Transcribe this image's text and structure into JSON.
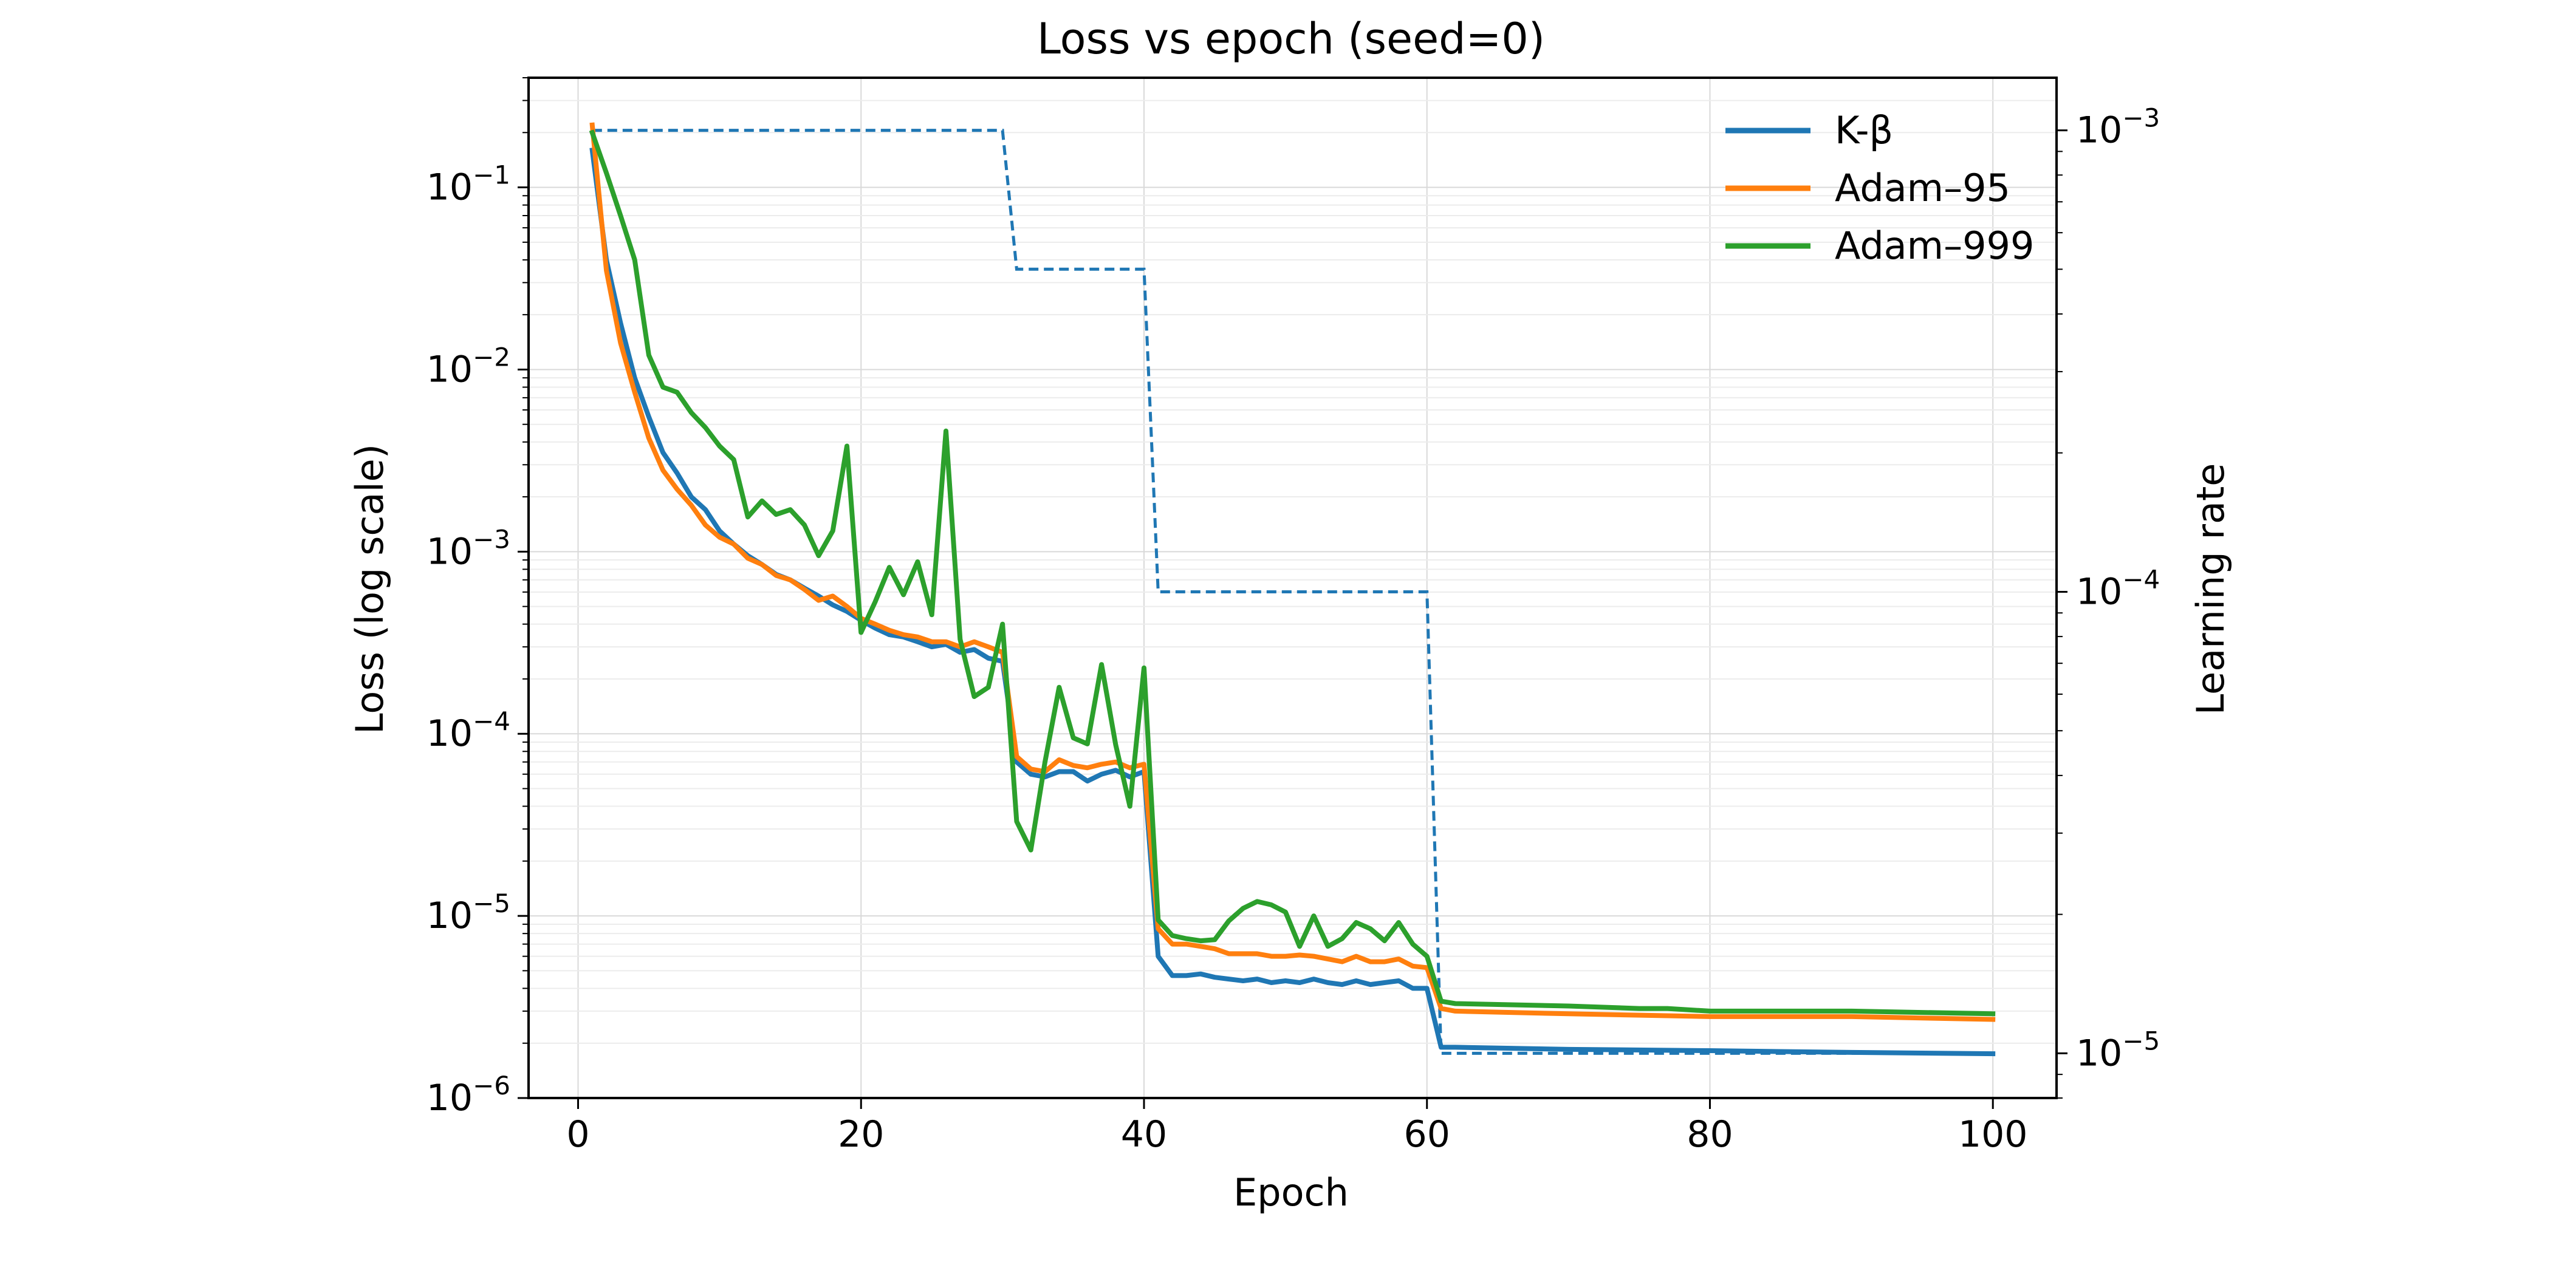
{
  "chart_data": {
    "type": "line",
    "title": "Loss vs epoch (seed=0)",
    "xlabel": "Epoch",
    "ylabel": "Loss (log scale)",
    "y2label": "Learning rate",
    "xlim": [
      -3.5,
      104.5
    ],
    "ylim": [
      1e-06,
      0.4
    ],
    "y2lim": [
      8e-06,
      0.0013
    ],
    "yscale": "log",
    "y2scale": "log",
    "grid": true,
    "legend_position": "top-right",
    "x_ticks": [
      {
        "value": 0,
        "label": "0"
      },
      {
        "value": 20,
        "label": "20"
      },
      {
        "value": 40,
        "label": "40"
      },
      {
        "value": 60,
        "label": "60"
      },
      {
        "value": 80,
        "label": "80"
      },
      {
        "value": 100,
        "label": "100"
      }
    ],
    "y_ticks": [
      {
        "value": 1e-06,
        "base": "10",
        "exp": "−6"
      },
      {
        "value": 1e-05,
        "base": "10",
        "exp": "−5"
      },
      {
        "value": 0.0001,
        "base": "10",
        "exp": "−4"
      },
      {
        "value": 0.001,
        "base": "10",
        "exp": "−3"
      },
      {
        "value": 0.01,
        "base": "10",
        "exp": "−2"
      },
      {
        "value": 0.1,
        "base": "10",
        "exp": "−1"
      }
    ],
    "y2_ticks": [
      {
        "value": 1e-05,
        "base": "10",
        "exp": "−5"
      },
      {
        "value": 0.0001,
        "base": "10",
        "exp": "−4"
      },
      {
        "value": 0.001,
        "base": "10",
        "exp": "−3"
      }
    ],
    "lr_schedule": {
      "name": "Learning rate",
      "color": "#1f77b4",
      "style": "dashed",
      "x": [
        1,
        30,
        31,
        40,
        41,
        60,
        61,
        100
      ],
      "values": [
        0.001,
        0.001,
        0.0005,
        0.0005,
        0.0001,
        0.0001,
        1e-05,
        1e-05
      ]
    },
    "series": [
      {
        "name": "K-β",
        "color": "#1f77b4",
        "points": [
          [
            1,
            0.16
          ],
          [
            2,
            0.04
          ],
          [
            3,
            0.018
          ],
          [
            4,
            0.009
          ],
          [
            5,
            0.0055
          ],
          [
            6,
            0.0035
          ],
          [
            7,
            0.0027
          ],
          [
            8,
            0.002
          ],
          [
            9,
            0.0017
          ],
          [
            10,
            0.0013
          ],
          [
            11,
            0.0011
          ],
          [
            12,
            0.00095
          ],
          [
            13,
            0.00085
          ],
          [
            14,
            0.00075
          ],
          [
            15,
            0.0007
          ],
          [
            16,
            0.00063
          ],
          [
            17,
            0.00057
          ],
          [
            18,
            0.00051
          ],
          [
            19,
            0.00047
          ],
          [
            20,
            0.00042
          ],
          [
            21,
            0.00038
          ],
          [
            22,
            0.00035
          ],
          [
            23,
            0.00034
          ],
          [
            24,
            0.00032
          ],
          [
            25,
            0.0003
          ],
          [
            26,
            0.00031
          ],
          [
            27,
            0.00028
          ],
          [
            28,
            0.00029
          ],
          [
            29,
            0.00026
          ],
          [
            30,
            0.00025
          ],
          [
            31,
            7e-05
          ],
          [
            32,
            6e-05
          ],
          [
            33,
            5.8e-05
          ],
          [
            34,
            6.2e-05
          ],
          [
            35,
            6.2e-05
          ],
          [
            36,
            5.5e-05
          ],
          [
            37,
            6e-05
          ],
          [
            38,
            6.3e-05
          ],
          [
            39,
            5.8e-05
          ],
          [
            40,
            6.2e-05
          ],
          [
            41,
            6e-06
          ],
          [
            42,
            4.7e-06
          ],
          [
            43,
            4.7e-06
          ],
          [
            44,
            4.8e-06
          ],
          [
            45,
            4.6e-06
          ],
          [
            46,
            4.5e-06
          ],
          [
            47,
            4.4e-06
          ],
          [
            48,
            4.5e-06
          ],
          [
            49,
            4.3e-06
          ],
          [
            50,
            4.4e-06
          ],
          [
            51,
            4.3e-06
          ],
          [
            52,
            4.5e-06
          ],
          [
            53,
            4.3e-06
          ],
          [
            54,
            4.2e-06
          ],
          [
            55,
            4.4e-06
          ],
          [
            56,
            4.2e-06
          ],
          [
            57,
            4.3e-06
          ],
          [
            58,
            4.4e-06
          ],
          [
            59,
            4e-06
          ],
          [
            60,
            4e-06
          ],
          [
            61,
            1.9e-06
          ],
          [
            62,
            1.9e-06
          ],
          [
            70,
            1.85e-06
          ],
          [
            80,
            1.82e-06
          ],
          [
            90,
            1.78e-06
          ],
          [
            100,
            1.75e-06
          ]
        ]
      },
      {
        "name": "Adam–95",
        "color": "#ff7f0e",
        "points": [
          [
            1,
            0.22
          ],
          [
            2,
            0.035
          ],
          [
            3,
            0.014
          ],
          [
            4,
            0.0075
          ],
          [
            5,
            0.0042
          ],
          [
            6,
            0.0028
          ],
          [
            7,
            0.0022
          ],
          [
            8,
            0.0018
          ],
          [
            9,
            0.0014
          ],
          [
            10,
            0.0012
          ],
          [
            11,
            0.0011
          ],
          [
            12,
            0.00092
          ],
          [
            13,
            0.00085
          ],
          [
            14,
            0.00074
          ],
          [
            15,
            0.0007
          ],
          [
            16,
            0.00062
          ],
          [
            17,
            0.00054
          ],
          [
            18,
            0.00057
          ],
          [
            19,
            0.0005
          ],
          [
            20,
            0.00043
          ],
          [
            21,
            0.0004
          ],
          [
            22,
            0.00037
          ],
          [
            23,
            0.00035
          ],
          [
            24,
            0.00034
          ],
          [
            25,
            0.00032
          ],
          [
            26,
            0.00032
          ],
          [
            27,
            0.0003
          ],
          [
            28,
            0.00032
          ],
          [
            29,
            0.0003
          ],
          [
            30,
            0.00028
          ],
          [
            31,
            7.5e-05
          ],
          [
            32,
            6.4e-05
          ],
          [
            33,
            6.2e-05
          ],
          [
            34,
            7.2e-05
          ],
          [
            35,
            6.7e-05
          ],
          [
            36,
            6.5e-05
          ],
          [
            37,
            6.8e-05
          ],
          [
            38,
            7e-05
          ],
          [
            39,
            6.5e-05
          ],
          [
            40,
            6.8e-05
          ],
          [
            41,
            8.5e-06
          ],
          [
            42,
            7e-06
          ],
          [
            43,
            7e-06
          ],
          [
            44,
            6.8e-06
          ],
          [
            45,
            6.6e-06
          ],
          [
            46,
            6.2e-06
          ],
          [
            47,
            6.2e-06
          ],
          [
            48,
            6.2e-06
          ],
          [
            49,
            6e-06
          ],
          [
            50,
            6e-06
          ],
          [
            51,
            6.1e-06
          ],
          [
            52,
            6e-06
          ],
          [
            53,
            5.8e-06
          ],
          [
            54,
            5.6e-06
          ],
          [
            55,
            6e-06
          ],
          [
            56,
            5.6e-06
          ],
          [
            57,
            5.6e-06
          ],
          [
            58,
            5.8e-06
          ],
          [
            59,
            5.3e-06
          ],
          [
            60,
            5.2e-06
          ],
          [
            61,
            3.1e-06
          ],
          [
            62,
            3e-06
          ],
          [
            70,
            2.9e-06
          ],
          [
            80,
            2.8e-06
          ],
          [
            90,
            2.8e-06
          ],
          [
            100,
            2.7e-06
          ]
        ]
      },
      {
        "name": "Adam–999",
        "color": "#2ca02c",
        "points": [
          [
            1,
            0.2
          ],
          [
            2,
            0.12
          ],
          [
            3,
            0.07
          ],
          [
            4,
            0.04
          ],
          [
            5,
            0.012
          ],
          [
            6,
            0.008
          ],
          [
            7,
            0.0075
          ],
          [
            8,
            0.0058
          ],
          [
            9,
            0.0048
          ],
          [
            10,
            0.0038
          ],
          [
            11,
            0.0032
          ],
          [
            12,
            0.00155
          ],
          [
            13,
            0.0019
          ],
          [
            14,
            0.0016
          ],
          [
            15,
            0.0017
          ],
          [
            16,
            0.0014
          ],
          [
            17,
            0.00095
          ],
          [
            18,
            0.0013
          ],
          [
            19,
            0.0038
          ],
          [
            20,
            0.00036
          ],
          [
            21,
            0.00053
          ],
          [
            22,
            0.00082
          ],
          [
            23,
            0.00058
          ],
          [
            24,
            0.00088
          ],
          [
            25,
            0.00045
          ],
          [
            26,
            0.0046
          ],
          [
            27,
            0.00033
          ],
          [
            28,
            0.00016
          ],
          [
            29,
            0.00018
          ],
          [
            30,
            0.0004
          ],
          [
            31,
            3.3e-05
          ],
          [
            32,
            2.3e-05
          ],
          [
            33,
            7e-05
          ],
          [
            34,
            0.00018
          ],
          [
            35,
            9.5e-05
          ],
          [
            36,
            8.8e-05
          ],
          [
            37,
            0.00024
          ],
          [
            38,
            8.7e-05
          ],
          [
            39,
            4e-05
          ],
          [
            40,
            0.00023
          ],
          [
            41,
            9.5e-06
          ],
          [
            42,
            7.8e-06
          ],
          [
            43,
            7.5e-06
          ],
          [
            44,
            7.3e-06
          ],
          [
            45,
            7.4e-06
          ],
          [
            46,
            9.4e-06
          ],
          [
            47,
            1.1e-05
          ],
          [
            48,
            1.2e-05
          ],
          [
            49,
            1.15e-05
          ],
          [
            50,
            1.05e-05
          ],
          [
            51,
            6.8e-06
          ],
          [
            52,
            1e-05
          ],
          [
            53,
            6.8e-06
          ],
          [
            54,
            7.5e-06
          ],
          [
            55,
            9.2e-06
          ],
          [
            56,
            8.5e-06
          ],
          [
            57,
            7.3e-06
          ],
          [
            58,
            9.2e-06
          ],
          [
            59,
            7e-06
          ],
          [
            60,
            6e-06
          ],
          [
            61,
            3.4e-06
          ],
          [
            62,
            3.3e-06
          ],
          [
            70,
            3.2e-06
          ],
          [
            75,
            3.1e-06
          ],
          [
            77,
            3.1e-06
          ],
          [
            80,
            3e-06
          ],
          [
            90,
            3e-06
          ],
          [
            100,
            2.9e-06
          ]
        ]
      }
    ]
  }
}
